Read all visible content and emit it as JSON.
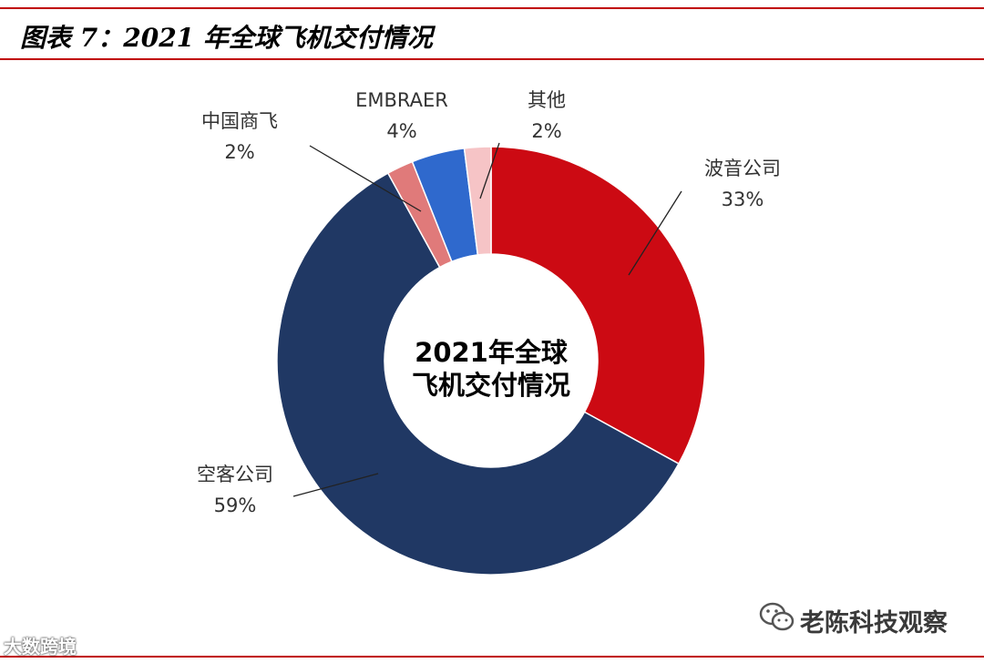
{
  "figure_title": "图表 7：2021 年全球飞机交付情况",
  "watermark_left": "大数跨境",
  "watermark_right": "老陈科技观察",
  "chart_data": {
    "type": "pie",
    "style": "donut",
    "center_label": [
      "2021年全球",
      "飞机交付情况"
    ],
    "start_angle_deg": 0,
    "direction": "clockwise",
    "slices": [
      {
        "name": "波音公司",
        "value": 33,
        "label": "33%",
        "color": "#cc0a13"
      },
      {
        "name": "空客公司",
        "value": 59,
        "label": "59%",
        "color": "#203864"
      },
      {
        "name": "中国商飞",
        "value": 2,
        "label": "2%",
        "color": "#e07a7a"
      },
      {
        "name": "EMBRAER",
        "value": 4,
        "label": "4%",
        "color": "#2f69cd"
      },
      {
        "name": "其他",
        "value": 2,
        "label": "2%",
        "color": "#f6c4c6"
      }
    ]
  }
}
